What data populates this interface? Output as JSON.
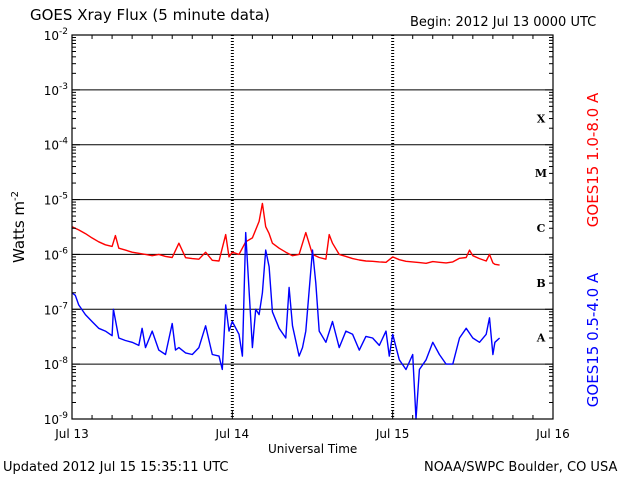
{
  "header": {
    "title": "GOES Xray Flux (5 minute data)",
    "begin": "Begin:  2012 Jul 13 0000 UTC"
  },
  "footer": {
    "updated": "Updated 2012 Jul 15 15:35:11 UTC",
    "credit": "NOAA/SWPC Boulder, CO USA"
  },
  "colors": {
    "long_channel": "#ff0000",
    "short_channel": "#0000ff",
    "grid": "#000000"
  },
  "chart_data": {
    "type": "line",
    "title": "GOES Xray Flux (5 minute data)",
    "xlabel": "Universal Time",
    "ylabel": "Watts m-2",
    "yscale": "log",
    "ylim": [
      1e-09,
      0.01
    ],
    "xlim": [
      0,
      72
    ],
    "x_unit": "hours since 2012 Jul 13 0000 UTC",
    "x_ticks": [
      {
        "x": 0,
        "label": "Jul 13"
      },
      {
        "x": 24,
        "label": "Jul 14"
      },
      {
        "x": 48,
        "label": "Jul 15"
      },
      {
        "x": 72,
        "label": "Jul 16"
      }
    ],
    "y_ticks": [
      {
        "exp": -9,
        "label": "10",
        "sup": "-9"
      },
      {
        "exp": -8,
        "label": "10",
        "sup": "-8"
      },
      {
        "exp": -7,
        "label": "10",
        "sup": "-7"
      },
      {
        "exp": -6,
        "label": "10",
        "sup": "-6"
      },
      {
        "exp": -5,
        "label": "10",
        "sup": "-5"
      },
      {
        "exp": -4,
        "label": "10",
        "sup": "-4"
      },
      {
        "exp": -3,
        "label": "10",
        "sup": "-3"
      },
      {
        "exp": -2,
        "label": "10",
        "sup": "-2"
      }
    ],
    "flare_classes": [
      {
        "label": "A",
        "exp": -7.5
      },
      {
        "label": "B",
        "exp": -6.5
      },
      {
        "label": "C",
        "exp": -5.5
      },
      {
        "label": "M",
        "exp": -4.5
      },
      {
        "label": "X",
        "exp": -3.5
      }
    ],
    "grid": true,
    "series": [
      {
        "name": "GOES15 1.0-8.0 A",
        "color": "#ff0000",
        "x": [
          0,
          1,
          2,
          3,
          4,
          5,
          6,
          6.5,
          7,
          8,
          9,
          10,
          11,
          12,
          13,
          14,
          15,
          16,
          17,
          18,
          19,
          20,
          21,
          22,
          23,
          23.5,
          24,
          25,
          26,
          27,
          28,
          28.5,
          29,
          29.5,
          30,
          31,
          32,
          33,
          34,
          35,
          36,
          37,
          38,
          38.5,
          39,
          40,
          41,
          42,
          43,
          44,
          45,
          46,
          47,
          48,
          49,
          50,
          51,
          52,
          53,
          54,
          55,
          56,
          57,
          58,
          59,
          59.5,
          60,
          61,
          62,
          62.5,
          63,
          63.3,
          64
        ],
        "y": [
          3.2e-06,
          2.8e-06,
          2.4e-06,
          2e-06,
          1.7e-06,
          1.5e-06,
          1.4e-06,
          2.2e-06,
          1.3e-06,
          1.2e-06,
          1.1e-06,
          1.05e-06,
          1e-06,
          9.5e-07,
          1e-06,
          9.2e-07,
          8.8e-07,
          1.6e-06,
          8.7e-07,
          8.4e-07,
          8.2e-07,
          1.1e-06,
          7.8e-07,
          7.6e-07,
          2.3e-06,
          9e-07,
          1.1e-06,
          1e-06,
          1.7e-06,
          2e-06,
          4e-06,
          8.5e-06,
          3.2e-06,
          2.4e-06,
          1.6e-06,
          1.3e-06,
          1.1e-06,
          9.5e-07,
          1e-06,
          2.5e-06,
          1e-06,
          8.8e-07,
          8.2e-07,
          2.3e-06,
          1.6e-06,
          1e-06,
          9.2e-07,
          8.4e-07,
          7.9e-07,
          7.6e-07,
          7.5e-07,
          7.3e-07,
          7.2e-07,
          9e-07,
          8e-07,
          7.5e-07,
          7.3e-07,
          7.1e-07,
          6.9e-07,
          7.4e-07,
          7.2e-07,
          7e-07,
          7.3e-07,
          8.5e-07,
          8.8e-07,
          1.2e-06,
          9.5e-07,
          8.4e-07,
          7.6e-07,
          1e-06,
          7e-07,
          6.6e-07,
          6.4e-07
        ]
      },
      {
        "name": "GOES15 0.5-4.0 A",
        "color": "#0000ff",
        "x": [
          0,
          0.5,
          1,
          2,
          3,
          4,
          5,
          6,
          6.2,
          7,
          8,
          9,
          10,
          10.5,
          11,
          12,
          13,
          14,
          15,
          15.5,
          16,
          17,
          18,
          19,
          20,
          21,
          22,
          22.5,
          23,
          23.5,
          24,
          25,
          25.5,
          26,
          27,
          27.5,
          28,
          28.5,
          29,
          29.5,
          30,
          31,
          32,
          32.5,
          33,
          34,
          34.5,
          35,
          36,
          36.5,
          37,
          38,
          39,
          40,
          41,
          42,
          43,
          44,
          45,
          46,
          47,
          47.5,
          48,
          49,
          50,
          51,
          51.5,
          52,
          53,
          54,
          55,
          56,
          57,
          58,
          59,
          60,
          61,
          62,
          62.5,
          63,
          63.3,
          64
        ],
        "y": [
          2e-07,
          1.8e-07,
          1.2e-07,
          8e-08,
          6e-08,
          4.5e-08,
          4e-08,
          3.3e-08,
          1e-07,
          3e-08,
          2.7e-08,
          2.5e-08,
          2.2e-08,
          4.5e-08,
          2e-08,
          4e-08,
          1.8e-08,
          1.5e-08,
          5.5e-08,
          1.8e-08,
          2e-08,
          1.6e-08,
          1.5e-08,
          2e-08,
          5e-08,
          1.5e-08,
          1.4e-08,
          8e-09,
          1.2e-07,
          4e-08,
          6e-08,
          3.5e-08,
          1.4e-08,
          2.5e-06,
          2e-08,
          1e-07,
          8e-08,
          2e-07,
          1.2e-06,
          6e-07,
          9e-08,
          4.5e-08,
          3e-08,
          2.5e-07,
          5e-08,
          1.4e-08,
          2e-08,
          4e-08,
          1.2e-06,
          3e-07,
          4e-08,
          2.5e-08,
          6e-08,
          2e-08,
          4e-08,
          3.5e-08,
          1.8e-08,
          3.2e-08,
          3e-08,
          2.2e-08,
          4e-08,
          1.4e-08,
          3.5e-08,
          1.2e-08,
          8e-09,
          1.5e-08,
          1e-09,
          8e-09,
          1.2e-08,
          2.5e-08,
          1.5e-08,
          1e-08,
          1e-08,
          3e-08,
          4.5e-08,
          3e-08,
          2.5e-08,
          3.5e-08,
          7e-08,
          1.5e-08,
          2.5e-08,
          3e-08
        ]
      }
    ]
  }
}
